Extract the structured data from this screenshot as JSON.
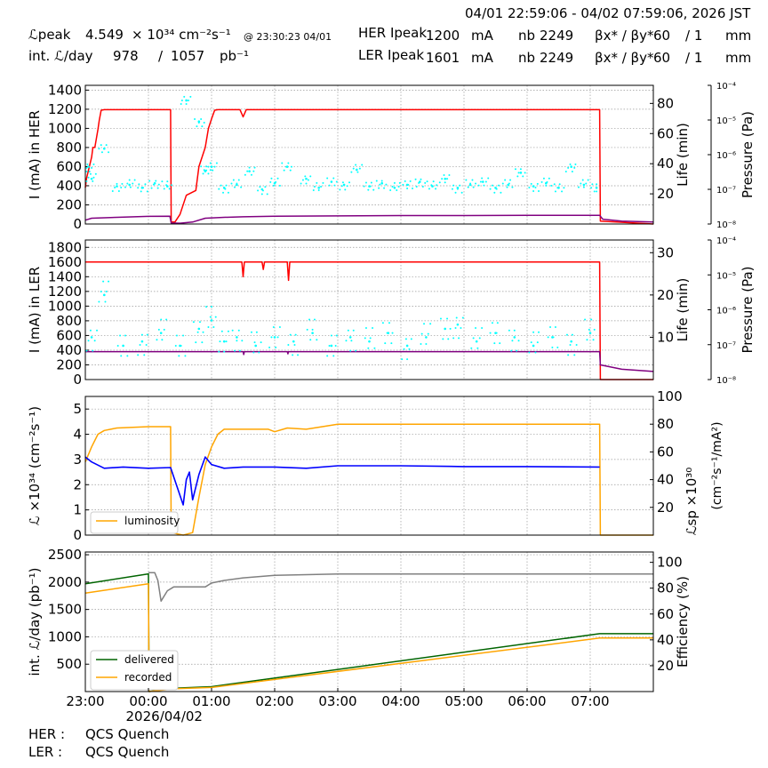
{
  "header": {
    "range": "04/01 22:59:06 - 04/02 07:59:06, 2026 JST",
    "lpeak_label": "ℒpeak",
    "lpeak_value": "4.549",
    "lpeak_unit": "× 10³⁴ cm⁻²s⁻¹",
    "lpeak_time": "@ 23:30:23 04/01",
    "intl_label": "int. ℒ/day",
    "intl_recorded": "978",
    "intl_sep": "/",
    "intl_delivered": "1057",
    "intl_unit": "pb⁻¹",
    "her_label": "HER Ipeak",
    "her_value": "1200",
    "ler_label": "LER Ipeak",
    "ler_value": "1601",
    "current_unit": "mA",
    "nb_label": "nb",
    "her_nb": "2249",
    "ler_nb": "2249",
    "beta_label": "βx* / βy*",
    "beta_x": "60",
    "beta_y": "/ 1",
    "beta_unit": "mm"
  },
  "footer": {
    "her_label": "HER :",
    "her_status": "QCS Quench",
    "ler_label": "LER :",
    "ler_status": "QCS Quench"
  },
  "colors": {
    "current": "#ff0000",
    "life": "#00ffff",
    "pressure": "#800080",
    "luminosity": "#ffa500",
    "specific": "#0000ff",
    "delivered": "#006400",
    "recorded": "#ffa500",
    "efficiency": "#808080",
    "grid": "#999999"
  },
  "chart_data": [
    {
      "type": "line",
      "ylabel": "I (mA) in HER",
      "ylabel_right": "Life (min)",
      "ylabel_pressure": "Pressure (Pa)",
      "ylim": [
        0,
        1450
      ],
      "ylim_right": [
        0,
        92
      ],
      "x_unit": "hours after 23:00",
      "xlim": [
        0,
        9
      ],
      "yticks": [
        0,
        200,
        400,
        600,
        800,
        1000,
        1200,
        1400
      ],
      "yticks_right": [
        20,
        40,
        60,
        80
      ],
      "pressure_ticks": [
        "10⁻⁴",
        "10⁻⁵",
        "10⁻⁶",
        "10⁻⁷",
        "10⁻⁸"
      ],
      "series": [
        {
          "role": "current",
          "x": [
            0,
            0.02,
            0.1,
            0.12,
            0.15,
            0.2,
            0.22,
            0.25,
            0.3,
            1.35,
            1.36,
            1.42,
            1.5,
            1.6,
            1.75,
            1.8,
            1.9,
            1.95,
            2.0,
            2.05,
            2.1,
            2.15,
            2.3,
            2.45,
            2.5,
            2.55,
            3.0,
            4.0,
            5.0,
            6.0,
            7.0,
            8.15,
            8.16,
            9.0
          ],
          "y": [
            380,
            480,
            700,
            800,
            800,
            990,
            1080,
            1190,
            1195,
            1195,
            20,
            20,
            100,
            300,
            350,
            600,
            800,
            1000,
            1100,
            1190,
            1195,
            1195,
            1195,
            1195,
            1120,
            1195,
            1195,
            1195,
            1195,
            1195,
            1195,
            1195,
            30,
            0
          ]
        },
        {
          "role": "pressure",
          "x": [
            0,
            0.1,
            0.3,
            0.5,
            1.0,
            1.34,
            1.36,
            1.5,
            1.7,
            1.9,
            2.2,
            2.5,
            3.0,
            4.0,
            5.0,
            6.0,
            7.0,
            8.15,
            8.2,
            8.5,
            9.0
          ],
          "y": [
            40,
            60,
            65,
            70,
            80,
            82,
            10,
            8,
            20,
            60,
            70,
            75,
            82,
            85,
            88,
            88,
            90,
            90,
            50,
            30,
            20
          ]
        },
        {
          "role": "life",
          "x": [
            0.05,
            0.1,
            0.3,
            0.5,
            0.7,
            0.9,
            1.1,
            1.3,
            1.6,
            1.8,
            1.9,
            2.0,
            2.2,
            2.4,
            2.6,
            2.8,
            3.0,
            3.2,
            3.5,
            3.7,
            3.9,
            4.1,
            4.3,
            4.5,
            4.7,
            4.9,
            5.1,
            5.3,
            5.5,
            5.7,
            5.9,
            6.1,
            6.3,
            6.5,
            6.7,
            6.9,
            7.1,
            7.3,
            7.5,
            7.7,
            7.9,
            8.1
          ],
          "y": [
            38,
            30,
            50,
            25,
            26,
            24,
            27,
            25,
            82,
            68,
            35,
            38,
            24,
            26,
            35,
            23,
            27,
            38,
            30,
            24,
            28,
            26,
            36,
            25,
            27,
            24,
            26,
            28,
            25,
            30,
            24,
            26,
            28,
            24,
            26,
            34,
            25,
            27,
            24,
            38,
            26,
            24
          ]
        }
      ]
    },
    {
      "type": "line",
      "ylabel": "I (mA) in LER",
      "ylabel_right": "Life (min)",
      "ylabel_pressure": "Pressure (Pa)",
      "ylim": [
        0,
        1900
      ],
      "ylim_right": [
        0,
        33
      ],
      "xlim": [
        0,
        9
      ],
      "yticks": [
        0,
        200,
        400,
        600,
        800,
        1000,
        1200,
        1400,
        1600,
        1800
      ],
      "yticks_right": [
        10,
        20,
        30
      ],
      "pressure_ticks": [
        "10⁻⁴",
        "10⁻⁵",
        "10⁻⁶",
        "10⁻⁷",
        "10⁻⁸"
      ],
      "series": [
        {
          "role": "current",
          "x": [
            0,
            2.48,
            2.5,
            2.52,
            2.8,
            2.82,
            2.84,
            3.0,
            3.2,
            3.22,
            3.24,
            8.15,
            8.16,
            9.0
          ],
          "y": [
            1600,
            1600,
            1400,
            1600,
            1600,
            1500,
            1600,
            1600,
            1600,
            1350,
            1600,
            1600,
            0,
            0
          ]
        },
        {
          "role": "pressure",
          "x": [
            0,
            2.5,
            2.51,
            2.52,
            3.2,
            3.21,
            3.22,
            8.15,
            8.16,
            8.5,
            9.0
          ],
          "y": [
            380,
            380,
            340,
            380,
            380,
            350,
            380,
            380,
            200,
            140,
            110
          ]
        },
        {
          "role": "life",
          "x": [
            0.1,
            0.3,
            0.6,
            0.9,
            1.2,
            1.5,
            1.8,
            2.0,
            2.2,
            2.4,
            2.7,
            3.0,
            3.3,
            3.6,
            3.9,
            4.2,
            4.5,
            4.8,
            5.1,
            5.4,
            5.7,
            5.9,
            6.2,
            6.5,
            6.8,
            7.1,
            7.4,
            7.7,
            8.0
          ],
          "y": [
            10,
            20,
            8,
            9,
            11,
            8,
            12,
            14,
            9,
            10,
            8,
            10,
            9,
            11,
            8,
            10,
            9,
            11,
            8,
            10,
            12,
            13,
            9,
            11,
            10,
            8,
            10,
            9,
            11
          ]
        }
      ]
    },
    {
      "type": "line",
      "ylabel": "ℒ ×10³⁴ (cm⁻²s⁻¹)",
      "ylabel_right": "ℒsp ×10³⁰",
      "ylabel_right2": "(cm⁻²s⁻¹/mA²)",
      "ylim": [
        0,
        5.5
      ],
      "ylim_right": [
        0,
        100
      ],
      "xlim": [
        0,
        9
      ],
      "yticks": [
        0,
        1,
        2,
        3,
        4,
        5
      ],
      "yticks_right": [
        20,
        40,
        60,
        80,
        100
      ],
      "legend": [
        "luminosity"
      ],
      "legend_position": "lower-left",
      "series": [
        {
          "role": "luminosity",
          "name": "luminosity",
          "x": [
            0,
            0.1,
            0.2,
            0.3,
            0.5,
            1.0,
            1.35,
            1.36,
            1.55,
            1.7,
            1.8,
            1.9,
            2.0,
            2.1,
            2.2,
            2.5,
            2.9,
            3.0,
            3.2,
            3.5,
            4.0,
            5.0,
            6.0,
            7.0,
            8.15,
            8.16,
            9.0
          ],
          "y": [
            2.9,
            3.5,
            4.0,
            4.15,
            4.25,
            4.3,
            4.3,
            0.1,
            0.0,
            0.1,
            1.5,
            2.8,
            3.5,
            4.0,
            4.2,
            4.2,
            4.2,
            4.1,
            4.25,
            4.2,
            4.4,
            4.4,
            4.4,
            4.4,
            4.4,
            0.0,
            0.0
          ]
        },
        {
          "role": "specific",
          "x": [
            0.0,
            0.1,
            0.3,
            0.6,
            1.0,
            1.35,
            1.55,
            1.6,
            1.65,
            1.7,
            1.8,
            1.9,
            2.0,
            2.2,
            2.5,
            3.0,
            3.5,
            4.0,
            5.0,
            6.0,
            7.0,
            8.15
          ],
          "y": [
            3.1,
            2.9,
            2.65,
            2.7,
            2.65,
            2.68,
            1.2,
            2.2,
            2.5,
            1.4,
            2.4,
            3.1,
            2.8,
            2.65,
            2.7,
            2.7,
            2.65,
            2.75,
            2.75,
            2.72,
            2.72,
            2.7
          ]
        }
      ]
    },
    {
      "type": "line",
      "ylabel": "int. ℒ/day (pb⁻¹)",
      "ylabel_right": "Efficiency (%)",
      "ylim": [
        0,
        2550
      ],
      "ylim_right": [
        0,
        108
      ],
      "xlim": [
        0,
        9
      ],
      "yticks": [
        500,
        1000,
        1500,
        2000,
        2500
      ],
      "yticks_right": [
        20,
        40,
        60,
        80,
        100
      ],
      "xticks": [
        "23:00",
        "00:00",
        "01:00",
        "02:00",
        "03:00",
        "04:00",
        "05:00",
        "06:00",
        "07:00"
      ],
      "xdate": "2026/04/02",
      "legend": [
        "delivered",
        "recorded"
      ],
      "legend_position": "lower-left",
      "series": [
        {
          "role": "delivered",
          "name": "delivered",
          "x": [
            0,
            1.0,
            1.01,
            1.4,
            2.0,
            8.15,
            9.0
          ],
          "y": [
            1970,
            2150,
            0,
            60,
            90,
            1057,
            1057
          ]
        },
        {
          "role": "recorded",
          "name": "recorded",
          "x": [
            0,
            1.0,
            1.01,
            1.4,
            2.0,
            8.15,
            9.0
          ],
          "y": [
            1800,
            1970,
            0,
            50,
            75,
            978,
            978
          ]
        },
        {
          "role": "efficiency",
          "x": [
            1.0,
            1.05,
            1.1,
            1.15,
            1.2,
            1.3,
            1.4,
            1.5,
            1.8,
            1.9,
            2.0,
            2.2,
            2.5,
            3.0,
            4.0,
            5.0,
            6.0,
            7.0,
            8.0,
            9.0
          ],
          "y": [
            92,
            92,
            92,
            86,
            70,
            78,
            81,
            81,
            81,
            81,
            84,
            86,
            88,
            90,
            91,
            91,
            91,
            91,
            91,
            91
          ]
        }
      ]
    }
  ]
}
